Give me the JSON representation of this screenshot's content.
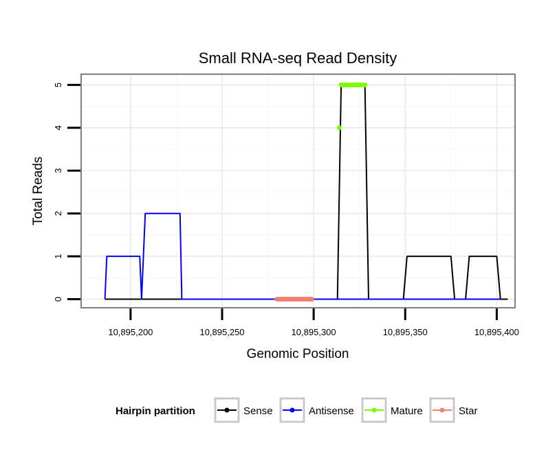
{
  "chart_data": {
    "type": "line",
    "title": "Small RNA-seq Read Density",
    "xlabel": "Genomic Position",
    "ylabel": "Total Reads",
    "xlim": [
      10895173,
      10895410
    ],
    "ylim": [
      -0.2,
      5.25
    ],
    "x_ticks": [
      10895200,
      10895250,
      10895300,
      10895350,
      10895400
    ],
    "x_tick_labels": [
      "10,895,200",
      "10,895,250",
      "10,895,300",
      "10,895,350",
      "10,895,400"
    ],
    "y_ticks": [
      0,
      1,
      2,
      3,
      4,
      5
    ],
    "y_tick_labels": [
      "0",
      "1",
      "2",
      "3",
      "4",
      "5"
    ],
    "grid": true,
    "legend": {
      "title": "Hairpin partition",
      "position": "bottom",
      "entries": [
        "Sense",
        "Antisense",
        "Mature",
        "Star"
      ]
    },
    "series": [
      {
        "name": "Sense",
        "color": "#000000",
        "marker": "line",
        "x": [
          10895186,
          10895313,
          10895315,
          10895328,
          10895330,
          10895349,
          10895351,
          10895375,
          10895377,
          10895383,
          10895385,
          10895400,
          10895402,
          10895406
        ],
        "y": [
          0,
          0,
          5,
          5,
          0,
          0,
          1,
          1,
          0,
          0,
          1,
          1,
          0,
          0
        ]
      },
      {
        "name": "Antisense",
        "color": "#0000ff",
        "marker": "line",
        "x": [
          10895186,
          10895187,
          10895205,
          10895206,
          10895208,
          10895227,
          10895228,
          10895230,
          10895313,
          10895315,
          10895328,
          10895330,
          10895349,
          10895351,
          10895375,
          10895377,
          10895383,
          10895385,
          10895400,
          10895402
        ],
        "y": [
          0,
          1,
          1,
          0,
          2,
          2,
          0,
          0,
          0,
          0,
          0,
          0,
          0,
          0,
          0,
          0,
          0,
          0,
          0,
          0
        ]
      },
      {
        "name": "Mature",
        "color": "#7cfc00",
        "marker": "points",
        "x": [
          10895314,
          10895315,
          10895316,
          10895317,
          10895318,
          10895319,
          10895320,
          10895321,
          10895322,
          10895323,
          10895324,
          10895325,
          10895326,
          10895327,
          10895328
        ],
        "y": [
          4,
          5,
          5,
          5,
          5,
          5,
          5,
          5,
          5,
          5,
          5,
          5,
          5,
          5,
          5
        ]
      },
      {
        "name": "Star",
        "color": "#f08070",
        "marker": "points",
        "x": [
          10895280,
          10895281,
          10895282,
          10895283,
          10895284,
          10895285,
          10895286,
          10895287,
          10895288,
          10895289,
          10895290,
          10895291,
          10895292,
          10895293,
          10895294,
          10895295,
          10895296,
          10895297,
          10895298,
          10895299
        ],
        "y": [
          0,
          0,
          0,
          0,
          0,
          0,
          0,
          0,
          0,
          0,
          0,
          0,
          0,
          0,
          0,
          0,
          0,
          0,
          0,
          0
        ]
      }
    ]
  }
}
